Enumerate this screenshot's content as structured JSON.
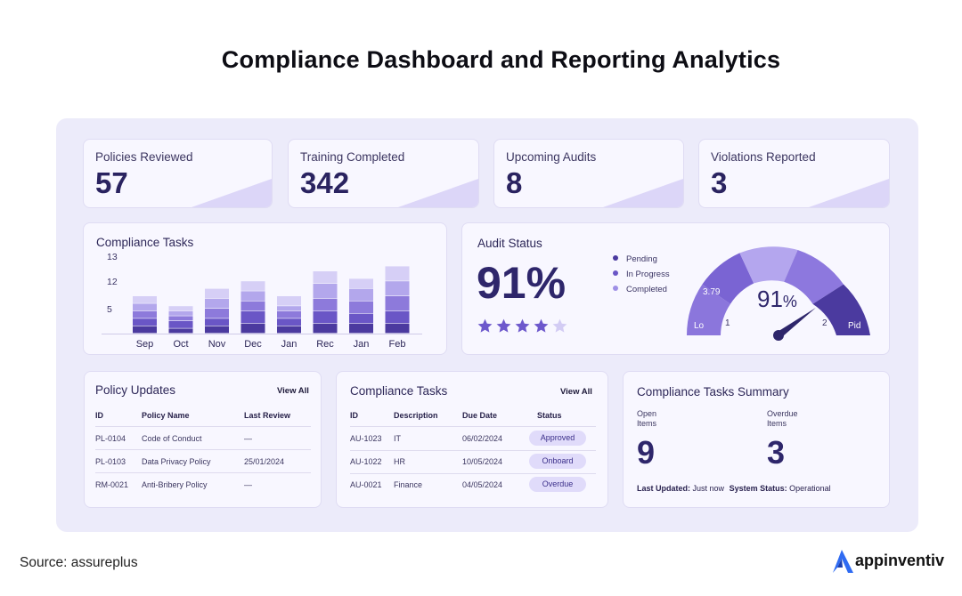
{
  "title": "Compliance Dashboard and Reporting Analytics",
  "stats": [
    {
      "label": "Policies Reviewed",
      "value": "57"
    },
    {
      "label": "Training Completed",
      "value": "342"
    },
    {
      "label": "Upcoming Audits",
      "value": "8"
    },
    {
      "label": "Violations Reported",
      "value": "3"
    }
  ],
  "compliance_chart": {
    "title": "Compliance Tasks",
    "y_ticks": [
      "13",
      "12",
      "5"
    ],
    "categories": [
      "Sep",
      "Oct",
      "Nov",
      "Dec",
      "Jan",
      "Rec",
      "Jan",
      "Feb"
    ]
  },
  "chart_data": {
    "type": "bar",
    "stacked": true,
    "categories": [
      "Sep",
      "Oct",
      "Nov",
      "Dec",
      "Jan",
      "Rec",
      "Jan",
      "Feb"
    ],
    "series": [
      {
        "values": [
          1.5,
          1,
          1.5,
          2,
          1.5,
          2,
          2,
          2
        ]
      },
      {
        "values": [
          1.5,
          1.5,
          1.5,
          2.5,
          1.5,
          2.5,
          2,
          2.5
        ]
      },
      {
        "values": [
          1.5,
          1,
          2,
          2,
          1.5,
          2.5,
          2.5,
          3
        ]
      },
      {
        "values": [
          1.5,
          1,
          2,
          2,
          1,
          3,
          2.5,
          3
        ]
      },
      {
        "values": [
          1.5,
          1,
          2,
          2,
          2,
          2.5,
          2,
          3
        ]
      }
    ],
    "colors": [
      "#4b3a9f",
      "#6a56c6",
      "#8d7adb",
      "#b3a7ec",
      "#d6cff6"
    ],
    "ylim": [
      0,
      15
    ],
    "y_ticks": [
      "13",
      "12",
      "5"
    ],
    "grid": false
  },
  "audit": {
    "title": "Audit Status",
    "percent": "91%",
    "rating": 4,
    "rating_max": 5,
    "legend": [
      {
        "label": "Pending",
        "color": "#4b3a9f"
      },
      {
        "label": "In Progress",
        "color": "#6a56c6"
      },
      {
        "label": "Completed",
        "color": "#9e8fe6"
      }
    ],
    "gauge": {
      "value_text": "91",
      "percent_sign": "%",
      "level": 0.91,
      "label_lo": "Lo",
      "label_hi": "Pid",
      "label_1": "1",
      "label_2": "2",
      "label_379": "3.79"
    }
  },
  "policy_updates": {
    "title": "Policy Updates",
    "view_all": "View All",
    "columns": [
      "ID",
      "Policy Name",
      "Last Review"
    ],
    "rows": [
      [
        "PL-0104",
        "Code of Conduct",
        "—"
      ],
      [
        "PL-0103",
        "Data Privacy Policy",
        "25/01/2024"
      ],
      [
        "RM-0021",
        "Anti-Bribery Policy",
        "—"
      ]
    ]
  },
  "compliance_tasks": {
    "title": "Compliance Tasks",
    "view_all": "View All",
    "columns": [
      "ID",
      "Description",
      "Due Date",
      "Status"
    ],
    "rows": [
      [
        "AU-1023",
        "IT",
        "06/02/2024",
        "Approved"
      ],
      [
        "AU-1022",
        "HR",
        "10/05/2024",
        "Onboard"
      ],
      [
        "AU-0021",
        "Finance",
        "04/05/2024",
        "Overdue"
      ]
    ]
  },
  "summary": {
    "title": "Compliance Tasks Summary",
    "open_label_1": "Open",
    "open_label_2": "Items",
    "open_value": "9",
    "overdue_label_1": "Overdue",
    "overdue_label_2": "Items",
    "overdue_value": "3",
    "updated_label": "Last Updated:",
    "updated_value": "Just now",
    "status_label": "System Status:",
    "status_value": "Operational"
  },
  "footer": {
    "source": "Source: assureplus",
    "brand": "appinventiv"
  }
}
